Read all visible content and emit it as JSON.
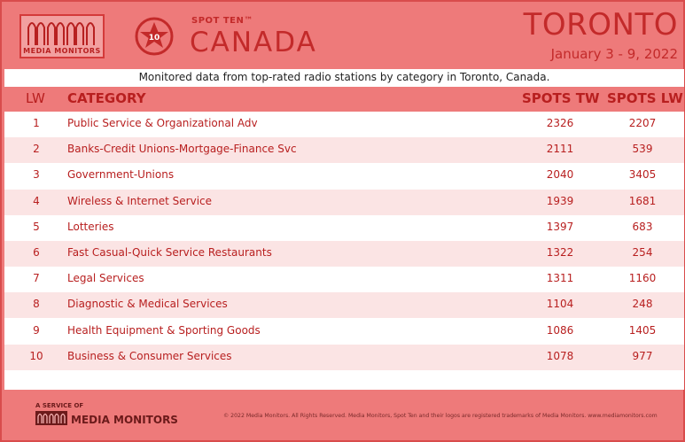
{
  "brand": {
    "logo_text": "MEDIA MONITORS",
    "badge_number": "10",
    "spot_label": "SPOT TEN™",
    "country": "CANADA",
    "city": "TORONTO",
    "dates": "January 3 - 9, 2022"
  },
  "subtitle": "Monitored data from top-rated radio stations by category in Toronto, Canada.",
  "columns": {
    "lw": "LW",
    "category": "CATEGORY",
    "spots_tw": "SPOTS TW",
    "spots_lw": "SPOTS LW"
  },
  "rows": [
    {
      "lw": "1",
      "category": "Public Service & Organizational Adv",
      "spots_tw": "2326",
      "spots_lw": "2207"
    },
    {
      "lw": "2",
      "category": "Banks-Credit Unions-Mortgage-Finance Svc",
      "spots_tw": "2111",
      "spots_lw": "539"
    },
    {
      "lw": "3",
      "category": "Government-Unions",
      "spots_tw": "2040",
      "spots_lw": "3405"
    },
    {
      "lw": "4",
      "category": "Wireless & Internet Service",
      "spots_tw": "1939",
      "spots_lw": "1681"
    },
    {
      "lw": "5",
      "category": "Lotteries",
      "spots_tw": "1397",
      "spots_lw": "683"
    },
    {
      "lw": "6",
      "category": "Fast Casual-Quick Service Restaurants",
      "spots_tw": "1322",
      "spots_lw": "254"
    },
    {
      "lw": "7",
      "category": "Legal Services",
      "spots_tw": "1311",
      "spots_lw": "1160"
    },
    {
      "lw": "8",
      "category": "Diagnostic & Medical Services",
      "spots_tw": "1104",
      "spots_lw": "248"
    },
    {
      "lw": "9",
      "category": "Health Equipment & Sporting Goods",
      "spots_tw": "1086",
      "spots_lw": "1405"
    },
    {
      "lw": "10",
      "category": "Business & Consumer Services",
      "spots_tw": "1078",
      "spots_lw": "977"
    }
  ],
  "footer": {
    "service_label": "A SERVICE OF",
    "logo_text": "MEDIA MONITORS",
    "copyright": "© 2022 Media Monitors. All Rights Reserved. Media Monitors, Spot Ten and their logos are registered trademarks of Media Monitors. www.mediamonitors.com"
  },
  "colors": {
    "brand_red": "#c32a2a",
    "frame_pink": "#ee7a7a",
    "row_alt": "#fbe4e4"
  }
}
